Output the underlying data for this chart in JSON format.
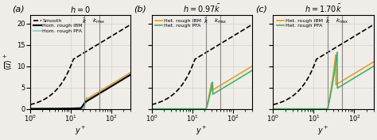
{
  "panels": [
    {
      "label": "(a)",
      "title": "h = 0",
      "title_has_bar": false,
      "vlines": [
        22,
        50
      ],
      "vline_labels": [
        "$\\bar{k}$",
        "$k_{\\max}$"
      ],
      "legend": [
        {
          "label": "Smooth",
          "color": "black",
          "ls": "--",
          "lw": 1.2
        },
        {
          "label": "Hom. rough IBM",
          "color": "black",
          "ls": "-",
          "lw": 1.5
        },
        {
          "label": "Hom. rough PFA",
          "color": "#7ecfcf",
          "ls": "-",
          "lw": 1.2
        }
      ],
      "curves": [
        {
          "type": "smooth",
          "color": "black",
          "ls": "--",
          "lw": 1.2
        },
        {
          "type": "ibm_a",
          "color": "#e8a020",
          "ls": "-",
          "lw": 1.2
        },
        {
          "type": "pfa_a",
          "color": "#7ecfcf",
          "ls": "-",
          "lw": 1.2
        },
        {
          "type": "hom_ibm",
          "color": "black",
          "ls": "-",
          "lw": 1.5
        }
      ]
    },
    {
      "label": "(b)",
      "title": "h = 0.97 \\bar{k}",
      "title_has_bar": true,
      "vlines": [
        22,
        50
      ],
      "vline_labels": [
        "$\\bar{k}$",
        "$k_{\\max}$"
      ],
      "legend": [
        {
          "label": "Het. rough IBM",
          "color": "#e8a020",
          "ls": "-",
          "lw": 1.2
        },
        {
          "label": "Het. rough PFA",
          "color": "#3cb371",
          "ls": "-",
          "lw": 1.2
        }
      ],
      "curves": [
        {
          "type": "smooth",
          "color": "black",
          "ls": "--",
          "lw": 1.2
        },
        {
          "type": "ibm_b",
          "color": "#e8a020",
          "ls": "-",
          "lw": 1.2
        },
        {
          "type": "pfa_b",
          "color": "#3cb371",
          "ls": "-",
          "lw": 1.2
        }
      ]
    },
    {
      "label": "(c)",
      "title": "h = 1.70 \\bar{k}",
      "title_has_bar": true,
      "vlines": [
        22,
        50
      ],
      "vline_labels": [
        "$\\bar{k}$",
        "$k_{\\max}$"
      ],
      "legend": [
        {
          "label": "Het. rough IBM",
          "color": "#e8a020",
          "ls": "-",
          "lw": 1.2
        },
        {
          "label": "Het. rough PFA",
          "color": "#3cb371",
          "ls": "-",
          "lw": 1.2
        }
      ],
      "curves": [
        {
          "type": "smooth",
          "color": "black",
          "ls": "--",
          "lw": 1.2
        },
        {
          "type": "ibm_c",
          "color": "#e8a020",
          "ls": "-",
          "lw": 1.2
        },
        {
          "type": "pfa_c",
          "color": "#3cb371",
          "ls": "-",
          "lw": 1.2
        }
      ]
    }
  ],
  "xlim": [
    1,
    300
  ],
  "ylim": [
    0,
    22
  ],
  "yticks": [
    0,
    5,
    10,
    15,
    20
  ],
  "xlabel": "$y^+$",
  "ylabel": "$\\langle\\overline{u}\\rangle^+$",
  "bg_color": "#f0ede8",
  "vline_color": "#888888",
  "vline_lw": 0.8
}
